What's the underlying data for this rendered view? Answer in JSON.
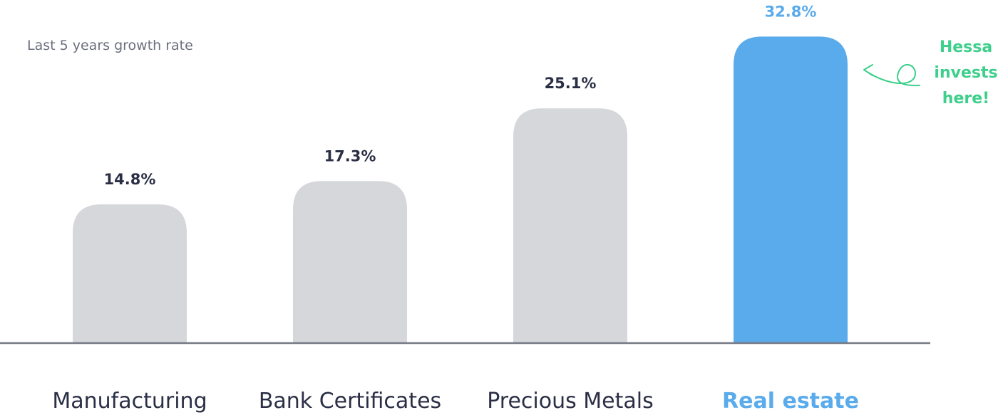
{
  "chart_data": {
    "type": "bar",
    "subtitle": "Last 5 years growth rate",
    "categories": [
      "Manufacturing",
      "Bank Certificates",
      "Precious Metals",
      "Real estate"
    ],
    "values": [
      14.8,
      17.3,
      25.1,
      32.8
    ],
    "value_labels": [
      "14.8%",
      "17.3%",
      "25.1%",
      "32.8%"
    ],
    "highlight_index": 3,
    "annotation": {
      "lines": [
        "Hessa",
        "invests",
        "here!"
      ]
    },
    "grid": false,
    "colors": {
      "bar": "#d6d7da",
      "highlight": "#5aabeb",
      "label": "#2b2f45",
      "axis": "#757985",
      "subtitle": "#6b6f7c",
      "annotation": "#3dcf8b"
    }
  }
}
